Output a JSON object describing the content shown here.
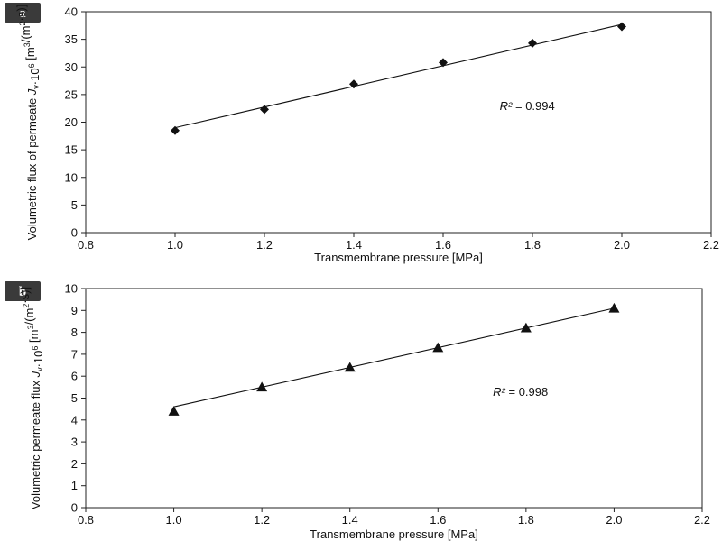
{
  "chart_data": [
    {
      "type": "scatter",
      "panel_label": "a",
      "title": "",
      "xlabel": "Transmembrane  pressure [MPa]",
      "ylabel": "Volumetric flux of permeate J_v·10^6 [m^3/(m^2·s)]",
      "xlim": [
        0.8,
        2.2
      ],
      "ylim": [
        0,
        40
      ],
      "x_ticks": [
        0.8,
        1.0,
        1.2,
        1.4,
        1.6,
        1.8,
        2.0,
        2.2
      ],
      "x_tick_labels": [
        "0.8",
        "1.0",
        "1.2",
        "1.4",
        "1.6",
        "1.8",
        "2.0",
        "2.2"
      ],
      "y_ticks": [
        0,
        5,
        10,
        15,
        20,
        25,
        30,
        35,
        40
      ],
      "y_tick_labels": [
        "0",
        "5",
        "10",
        "15",
        "20",
        "25",
        "30",
        "35",
        "40"
      ],
      "marker": "diamond",
      "grid": false,
      "series": [
        {
          "x": [
            1.0,
            1.2,
            1.4,
            1.6,
            1.8,
            2.0
          ],
          "y": [
            18.5,
            22.3,
            26.9,
            30.8,
            34.3,
            37.3
          ]
        }
      ],
      "trendline": {
        "x": [
          1.0,
          2.0
        ],
        "y": [
          19.0,
          37.7
        ]
      },
      "annotation": {
        "text": "R² = 0.994",
        "x": 1.85,
        "y": 22.2
      }
    },
    {
      "type": "scatter",
      "panel_label": "b",
      "title": "",
      "xlabel": "Transmembrane  pressure [MPa]",
      "ylabel": "Volumetric permeate flux J_v·10^6 [m^3/(m^2·s)]",
      "xlim": [
        0.8,
        2.2
      ],
      "ylim": [
        0,
        10
      ],
      "x_ticks": [
        0.8,
        1.0,
        1.2,
        1.4,
        1.6,
        1.8,
        2.0,
        2.2
      ],
      "x_tick_labels": [
        "0.8",
        "1.0",
        "1.2",
        "1.4",
        "1.6",
        "1.8",
        "2.0",
        "2.2"
      ],
      "y_ticks": [
        0,
        1,
        2,
        3,
        4,
        5,
        6,
        7,
        8,
        9,
        10
      ],
      "y_tick_labels": [
        "0",
        "1",
        "2",
        "3",
        "4",
        "5",
        "6",
        "7",
        "8",
        "9",
        "10"
      ],
      "marker": "triangle",
      "grid": false,
      "series": [
        {
          "x": [
            1.0,
            1.2,
            1.4,
            1.6,
            1.8,
            2.0
          ],
          "y": [
            4.4,
            5.5,
            6.4,
            7.3,
            8.2,
            9.1
          ]
        }
      ],
      "trendline": {
        "x": [
          1.0,
          2.0
        ],
        "y": [
          4.6,
          9.1
        ]
      },
      "annotation": {
        "text": "R² = 0.998",
        "x": 1.85,
        "y": 5.1
      }
    }
  ]
}
